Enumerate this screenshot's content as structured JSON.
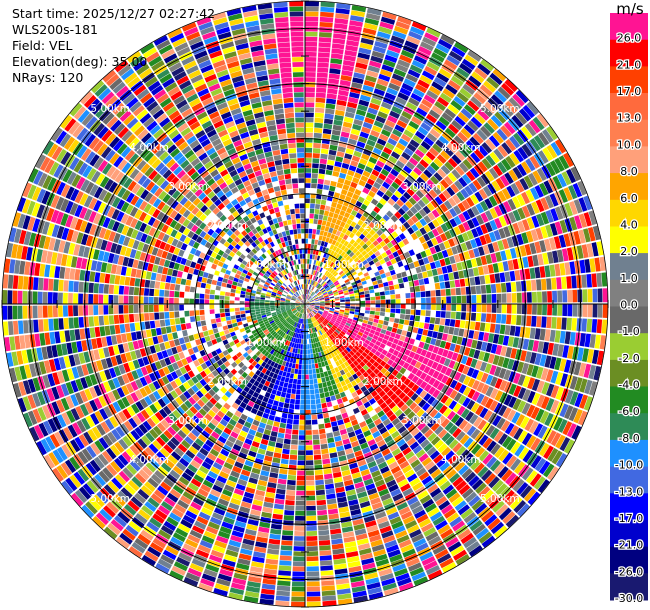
{
  "info": {
    "start_time": "Start time: 2025/12/27 02:27:42",
    "instrument": "WLS200s-181",
    "field": "Field: VEL",
    "elevation": "Elevation(deg): 35.00",
    "nrays": "NRays: 120"
  },
  "chart_data": {
    "type": "heatmap",
    "subtype": "polar-ppi-radar",
    "field": "VEL",
    "elevation_deg": 35.0,
    "n_rays": 120,
    "range_km": [
      0,
      5.5
    ],
    "range_rings_km": [
      1.0,
      2.0,
      3.0,
      4.0,
      5.0
    ],
    "ring_labels": [
      "1.00km",
      "2.00km",
      "3.00km",
      "4.00km",
      "5.00km"
    ],
    "colorbar": {
      "unit": "m/s",
      "ticks": [
        "26.0",
        "21.0",
        "17.0",
        "13.0",
        "10.0",
        "8.0",
        "6.0",
        "4.0",
        "2.0",
        "1.0",
        "0.0",
        "-1.0",
        "-2.0",
        "-4.0",
        "-6.0",
        "-8.0",
        "-10.0",
        "-13.0",
        "-17.0",
        "-21.0",
        "-26.0",
        "-30.0"
      ],
      "colors": [
        "#ff1493",
        "#ff0000",
        "#ff4000",
        "#ff6a3d",
        "#ff7f50",
        "#ffa07a",
        "#ffa500",
        "#ffd700",
        "#ffff00",
        "#708090",
        "#808080",
        "#696969",
        "#9acd32",
        "#6b8e23",
        "#228b22",
        "#2e8b57",
        "#1e90ff",
        "#4169e1",
        "#0000ff",
        "#0000cd",
        "#000080",
        "#191970"
      ]
    },
    "coherent_regions": [
      {
        "az_from": 355,
        "az_to": 12,
        "range_km": [
          3.8,
          5.2
        ],
        "color": "#ff1493"
      },
      {
        "az_from": 12,
        "az_to": 28,
        "range_km": [
          1.2,
          2.6
        ],
        "color": "#ffa500"
      },
      {
        "az_from": 28,
        "az_to": 55,
        "range_km": [
          0.6,
          1.8
        ],
        "color": "#ffd700"
      },
      {
        "az_from": 108,
        "az_to": 125,
        "range_km": [
          0.4,
          2.9
        ],
        "color": "#ff1493"
      },
      {
        "az_from": 125,
        "az_to": 145,
        "range_km": [
          0.3,
          2.6
        ],
        "color": "#ff0000"
      },
      {
        "az_from": 145,
        "az_to": 160,
        "range_km": [
          0.3,
          1.7
        ],
        "color": "#ffd700"
      },
      {
        "az_from": 160,
        "az_to": 172,
        "range_km": [
          0.3,
          1.7
        ],
        "color": "#228b22"
      },
      {
        "az_from": 172,
        "az_to": 182,
        "range_km": [
          0.3,
          2.0
        ],
        "color": "#1e90ff"
      },
      {
        "az_from": 182,
        "az_to": 200,
        "range_km": [
          0.3,
          2.2
        ],
        "color": "#0000ff"
      },
      {
        "az_from": 195,
        "az_to": 250,
        "range_km": [
          0.0,
          1.2
        ],
        "color": "#228b22"
      },
      {
        "az_from": 250,
        "az_to": 275,
        "range_km": [
          0.0,
          1.0
        ],
        "color": "#2e8b57"
      },
      {
        "az_from": 200,
        "az_to": 215,
        "range_km": [
          0.9,
          2.2
        ],
        "color": "#000080"
      }
    ]
  }
}
